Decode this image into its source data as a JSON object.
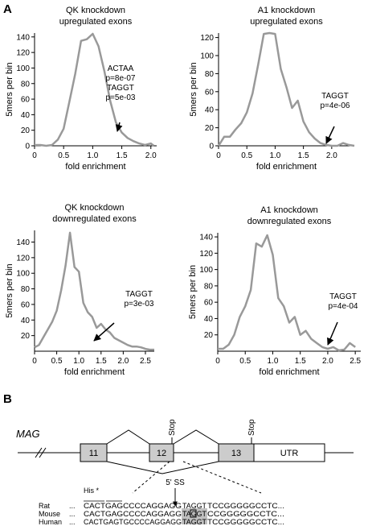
{
  "panel_a_label": "A",
  "panel_b_label": "B",
  "chart_data": [
    {
      "type": "line",
      "title": "QK knockdown",
      "subtitle": "upregulated exons",
      "xlabel": "fold enrichment",
      "ylabel": "5mers per bin",
      "xlim": [
        0,
        2.1
      ],
      "ylim": [
        0,
        145
      ],
      "xticks": [
        "0",
        "0.5",
        "1.0",
        "1.5",
        "2.0"
      ],
      "yticks": [
        "0",
        "20",
        "40",
        "60",
        "80",
        "100",
        "120",
        "140"
      ],
      "x": [
        0.0,
        0.1,
        0.2,
        0.3,
        0.4,
        0.5,
        0.6,
        0.7,
        0.8,
        0.9,
        1.0,
        1.1,
        1.2,
        1.3,
        1.4,
        1.5,
        1.6,
        1.7,
        1.8,
        1.9,
        2.0,
        2.05
      ],
      "values": [
        1,
        1,
        0,
        1,
        8,
        22,
        57,
        93,
        135,
        137,
        144,
        128,
        96,
        58,
        30,
        17,
        10,
        6,
        3,
        1,
        3,
        0
      ],
      "line_color": "#999999",
      "annotations": [
        {
          "text": "ACTAA",
          "x": 1.48,
          "y": 0
        },
        {
          "text": "p=8e-07",
          "x": 1.48,
          "y": 0
        },
        {
          "text": "TAGGT",
          "x": 1.48,
          "y": 0
        },
        {
          "text": "p=5e-03",
          "x": 1.48,
          "y": 0
        }
      ]
    },
    {
      "type": "line",
      "title": "A1 knockdown",
      "subtitle": "upregulated exons",
      "xlabel": "fold enrichment",
      "ylabel": "5mers per bin",
      "xlim": [
        0,
        2.4
      ],
      "ylim": [
        0,
        125
      ],
      "xticks": [
        "0",
        "0.5",
        "1.0",
        "1.5",
        "2.0"
      ],
      "yticks": [
        "0",
        "20",
        "40",
        "60",
        "80",
        "100",
        "120"
      ],
      "x": [
        0.0,
        0.1,
        0.2,
        0.3,
        0.4,
        0.5,
        0.6,
        0.7,
        0.8,
        0.9,
        1.0,
        1.1,
        1.2,
        1.3,
        1.4,
        1.5,
        1.6,
        1.7,
        1.8,
        1.9,
        2.0,
        2.1,
        2.2,
        2.3,
        2.4
      ],
      "values": [
        0,
        10,
        10,
        18,
        25,
        37,
        58,
        90,
        124,
        125,
        124,
        85,
        65,
        42,
        50,
        27,
        15,
        8,
        3,
        1,
        0,
        0,
        3,
        1,
        0
      ],
      "line_color": "#999999",
      "annotations": [
        {
          "text": "TAGGT",
          "x": 2.24,
          "y": 0
        },
        {
          "text": "p=4e-06",
          "x": 2.24,
          "y": 0
        }
      ]
    },
    {
      "type": "line",
      "title": "QK knockdown",
      "subtitle": "downregulated exons",
      "xlabel": "fold enrichment",
      "ylabel": "5mers per bin",
      "xlim": [
        0,
        2.7
      ],
      "ylim": [
        0,
        155
      ],
      "xticks": [
        "0",
        "0.5",
        "1.0",
        "1.5",
        "2.0",
        "2.5"
      ],
      "yticks": [
        "20",
        "40",
        "60",
        "80",
        "100",
        "120",
        "140"
      ],
      "x": [
        0.0,
        0.1,
        0.2,
        0.3,
        0.4,
        0.5,
        0.6,
        0.7,
        0.8,
        0.9,
        1.0,
        1.1,
        1.2,
        1.3,
        1.4,
        1.5,
        1.6,
        1.7,
        1.8,
        1.9,
        2.0,
        2.1,
        2.2,
        2.3,
        2.4,
        2.5,
        2.6,
        2.7
      ],
      "values": [
        5,
        8,
        18,
        28,
        38,
        52,
        78,
        110,
        152,
        108,
        102,
        62,
        50,
        44,
        30,
        35,
        28,
        24,
        17,
        14,
        11,
        8,
        6,
        6,
        5,
        3,
        2,
        2
      ],
      "line_color": "#999999",
      "annotations": [
        {
          "text": "TAGGT",
          "x": 2.0,
          "y": 0
        },
        {
          "text": "p=3e-03",
          "x": 2.0,
          "y": 0
        }
      ]
    },
    {
      "type": "line",
      "title": "A1 knockdown",
      "subtitle": "downregulated exons",
      "xlabel": "fold enrichment",
      "ylabel": "5mers per bin",
      "xlim": [
        0,
        2.6
      ],
      "ylim": [
        0,
        145
      ],
      "xticks": [
        "0",
        "0.5",
        "1.0",
        "1.5",
        "2.0",
        "2.5"
      ],
      "yticks": [
        "20",
        "40",
        "60",
        "80",
        "100",
        "120",
        "140"
      ],
      "x": [
        0.0,
        0.1,
        0.2,
        0.3,
        0.4,
        0.5,
        0.6,
        0.7,
        0.8,
        0.9,
        1.0,
        1.1,
        1.2,
        1.3,
        1.4,
        1.5,
        1.6,
        1.7,
        1.8,
        1.9,
        2.0,
        2.1,
        2.2,
        2.3,
        2.4,
        2.5
      ],
      "values": [
        3,
        3,
        8,
        20,
        42,
        55,
        75,
        132,
        128,
        142,
        118,
        65,
        55,
        35,
        42,
        20,
        25,
        15,
        10,
        5,
        3,
        5,
        1,
        2,
        10,
        5
      ],
      "line_color": "#999999",
      "annotations": [
        {
          "text": "TAGGT",
          "x": 2.2,
          "y": 0
        },
        {
          "text": "p=4e-04",
          "x": 2.2,
          "y": 0
        }
      ]
    }
  ],
  "gene_diagram": {
    "gene_name": "MAG",
    "exons": [
      "11",
      "12",
      "13"
    ],
    "stop_labels": [
      "Stop",
      "Stop"
    ],
    "utr_label": "UTR",
    "splice_site_label": "5' SS",
    "codon_label": "His *",
    "exon_fill": "#cccccc",
    "highlight_fill": "#c0c0c0"
  },
  "alignment": [
    {
      "species": "Rat",
      "prefix": "...",
      "pre": "CACTGAGCCCCAGGAGG",
      "box": "TAGGT",
      "post": "TCCGGGGGCCTC..."
    },
    {
      "species": "Mouse",
      "prefix": "...",
      "pre": "CACTGAGCCCCAGGAGG",
      "box": "TAGGT",
      "post": "CCGGGGGCCTC..."
    },
    {
      "species": "Human",
      "prefix": "...",
      "pre": "CACTGAGTGCCCCAGGAGG",
      "box": "TAGGT",
      "post": "TCCGGGGGCCTC..."
    }
  ]
}
